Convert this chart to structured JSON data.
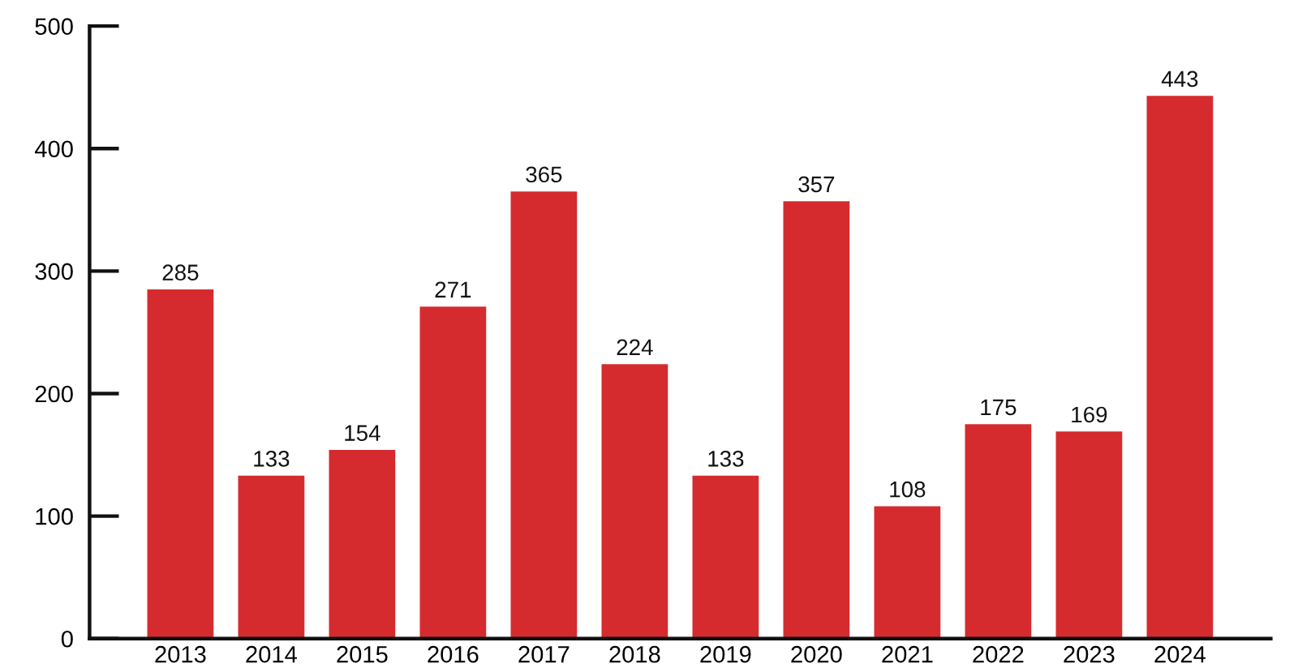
{
  "chart_data": {
    "type": "bar",
    "categories": [
      "2013",
      "2014",
      "2015",
      "2016",
      "2017",
      "2018",
      "2019",
      "2020",
      "2021",
      "2022",
      "2023",
      "2024"
    ],
    "values": [
      285,
      133,
      154,
      271,
      365,
      224,
      133,
      357,
      108,
      175,
      169,
      443
    ],
    "color": "#d52b2e",
    "ylim": [
      0,
      500
    ],
    "yticks": [
      0,
      100,
      200,
      300,
      400,
      500
    ],
    "data_labels": true,
    "grid": false,
    "legend": false
  }
}
